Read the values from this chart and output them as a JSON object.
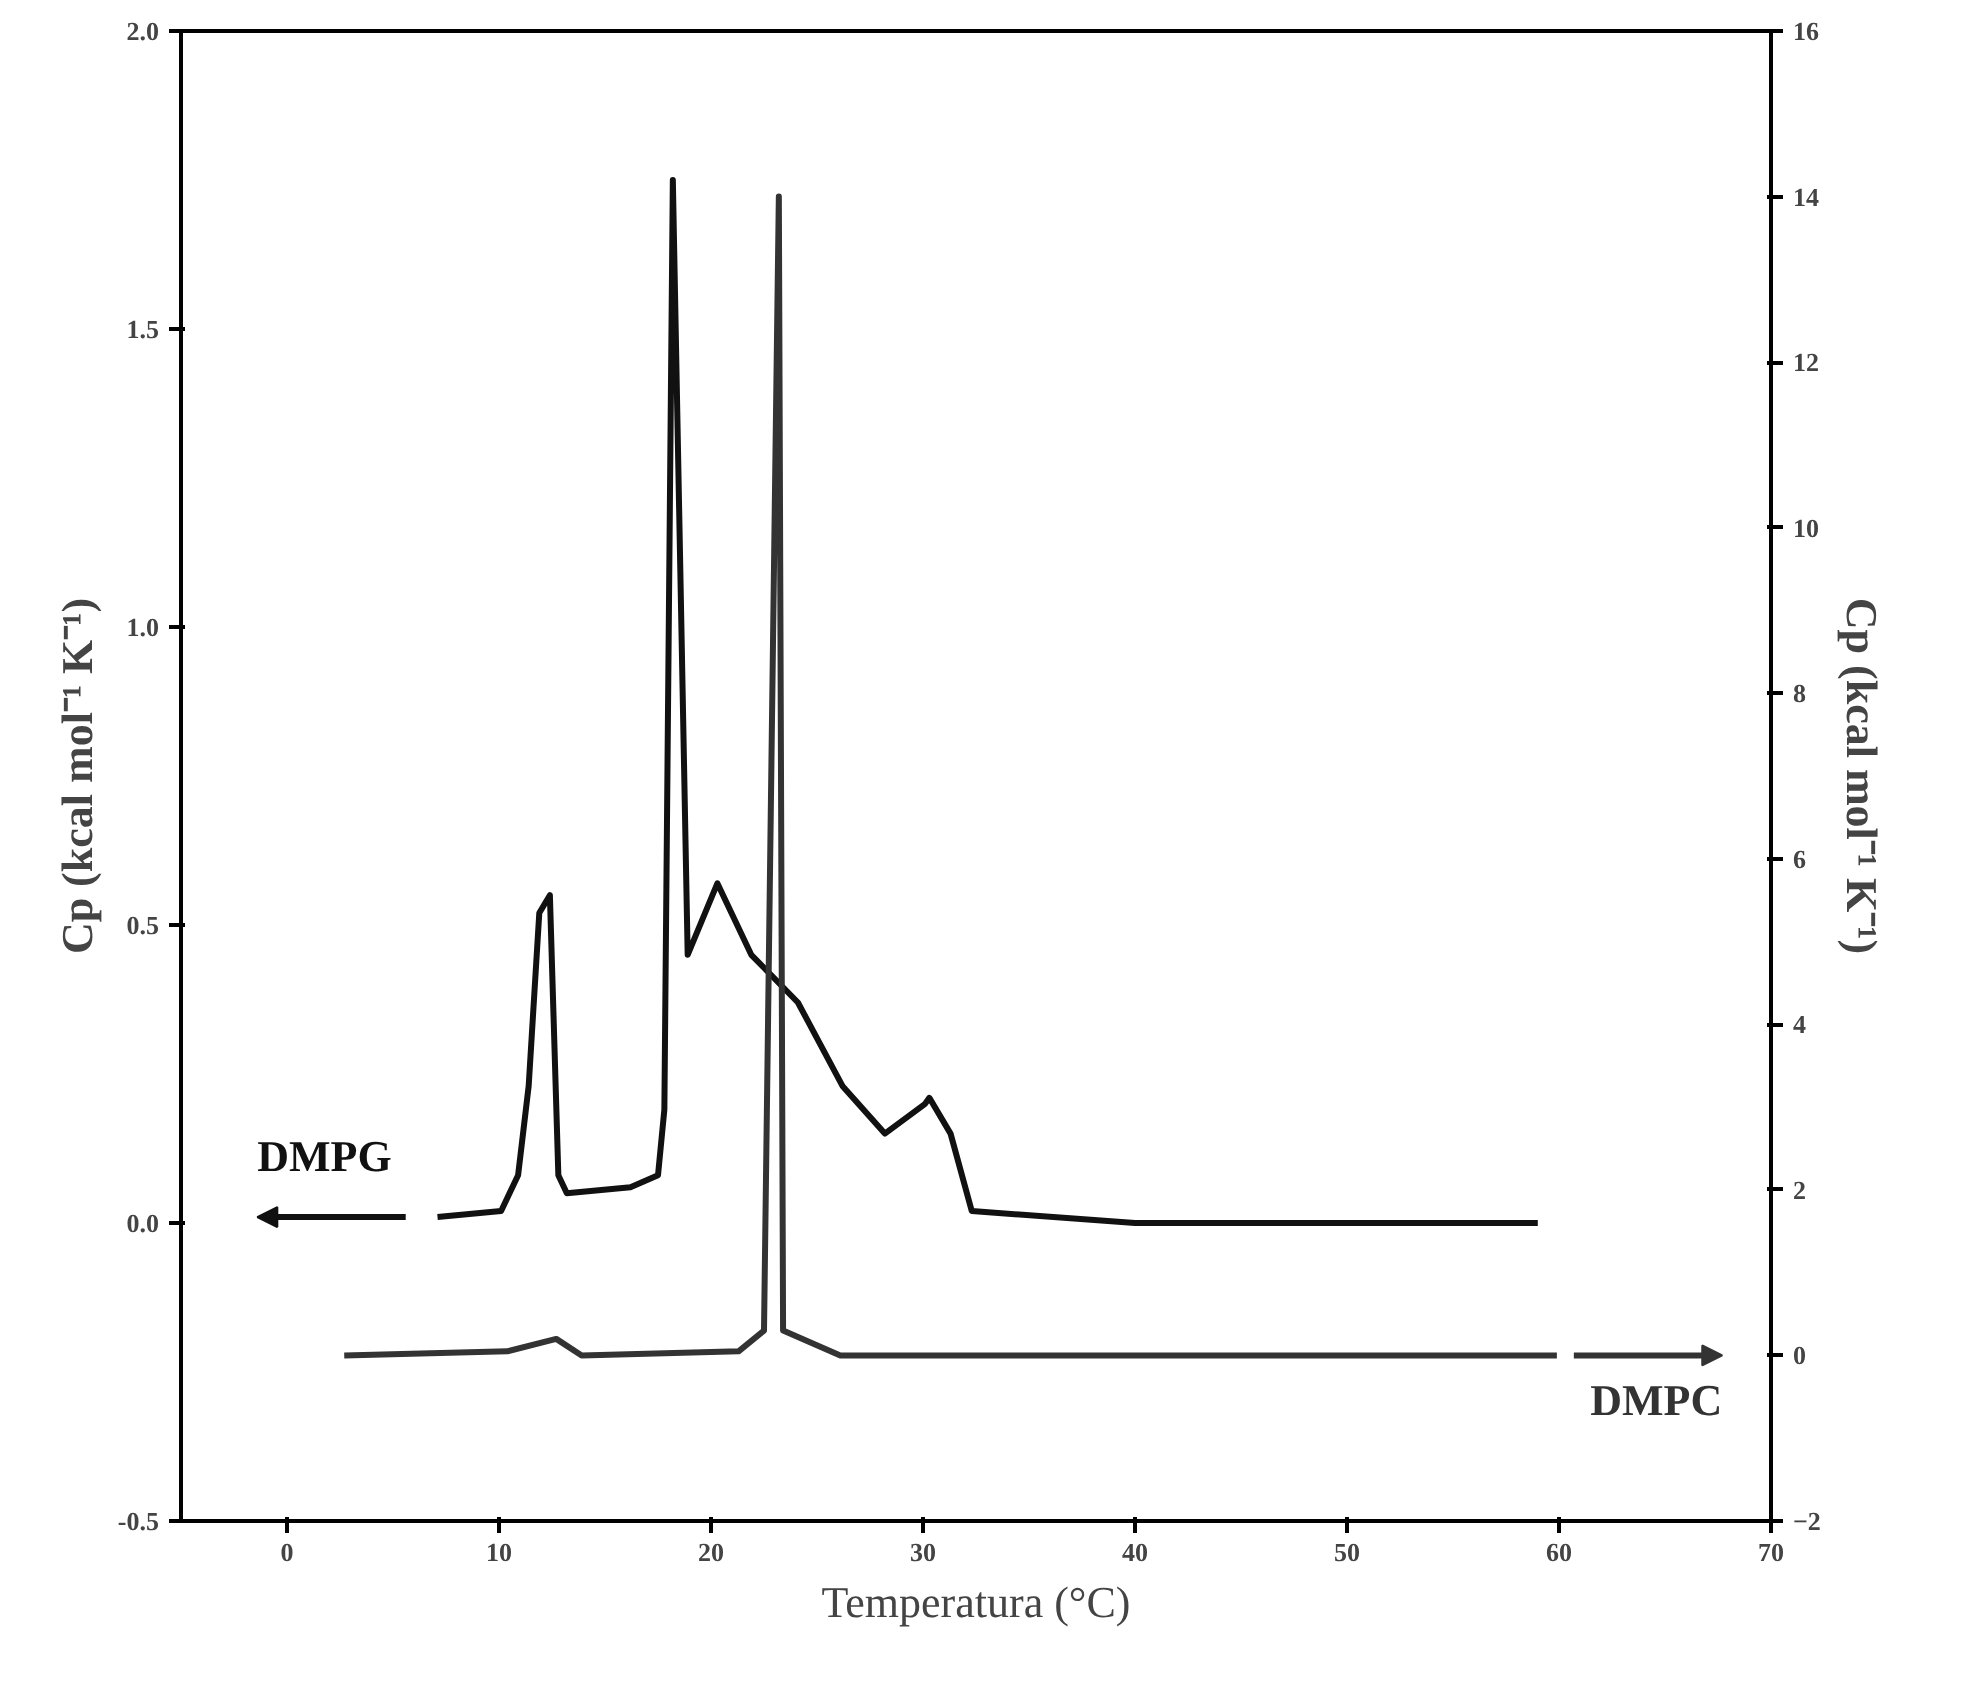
{
  "chart_data": {
    "type": "line",
    "xlabel": "Temperatura (°C)",
    "ylabel": "Cp (kcal mol⁻¹ K⁻¹)",
    "y2label": "Cp (kcal mol⁻¹ K⁻¹)",
    "xlim": [
      -5,
      70
    ],
    "xticks": [
      0,
      10,
      20,
      30,
      40,
      50,
      60,
      70
    ],
    "ylim": [
      -0.5,
      2.0
    ],
    "yticks": [
      {
        "value": -0.5,
        "label": "-0.5"
      },
      {
        "value": 0,
        "label": "0.0"
      },
      {
        "value": 0.5,
        "label": "0.5"
      },
      {
        "value": 1,
        "label": "1.0"
      },
      {
        "value": 1.5,
        "label": "1.5"
      },
      {
        "value": 2,
        "label": "2.0"
      }
    ],
    "y2lim": [
      -2,
      16
    ],
    "y2ticks": [
      -2,
      0,
      2,
      4,
      6,
      8,
      10,
      12,
      14,
      16
    ],
    "grid": false,
    "marker": "none",
    "line_style": "solid",
    "series": [
      {
        "name": "DMPG",
        "color": "#111111",
        "x": [
          7.1,
          10.1,
          10.9,
          11.4,
          11.9,
          12.4,
          12.8,
          13.2,
          16.2,
          17.5,
          17.8,
          18.2,
          18.9,
          20.3,
          21.9,
          24.1,
          26.2,
          28.2,
          30.1,
          30.3,
          31.3,
          32.3,
          40,
          50,
          59
        ],
        "values": [
          0.01,
          0.02,
          0.08,
          0.23,
          0.52,
          0.55,
          0.08,
          0.05,
          0.06,
          0.08,
          0.19,
          1.75,
          0.45,
          0.57,
          0.45,
          0.37,
          0.23,
          0.15,
          0.2,
          0.21,
          0.15,
          0.02,
          0.0,
          0.0,
          0.0
        ]
      },
      {
        "name": "DMPC",
        "color": "#333333",
        "axis": "y2",
        "x": [
          2.7,
          10.4,
          12.7,
          13.9,
          21.3,
          22.5,
          23.2,
          23.4,
          26.1,
          40,
          50,
          59.9
        ],
        "values": [
          0,
          0.05,
          0.2,
          0,
          0.05,
          0.3,
          14.0,
          0.3,
          0,
          0,
          0,
          0
        ]
      }
    ]
  }
}
